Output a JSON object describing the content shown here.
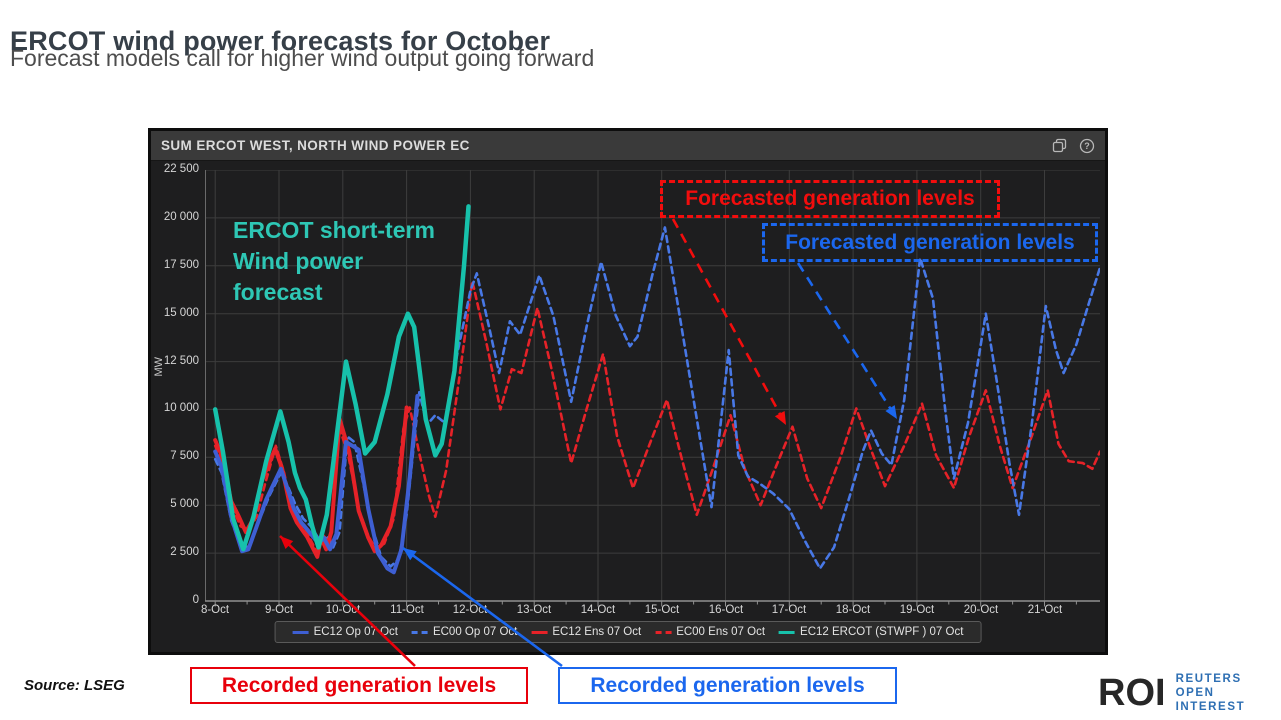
{
  "page": {
    "title": "ERCOT wind power forecasts for October",
    "subtitle": "Forecast models call for higher wind output going forward",
    "source": "Source: LSEG"
  },
  "logo": {
    "mark": "ROI",
    "line1": "REUTERS OPEN",
    "line2": "INTEREST"
  },
  "panel": {
    "title": "SUM ERCOT WEST, NORTH WIND POWER EC",
    "icons": [
      "duplicate-icon",
      "help-icon"
    ]
  },
  "annotations": {
    "teal_note": "ERCOT short-term\nWind power\nforecast",
    "forecast_red": "Forecasted generation levels",
    "forecast_blue": "Forecasted generation levels",
    "recorded_red": "Recorded generation levels",
    "recorded_blue": "Recorded generation levels",
    "leaders": [
      {
        "name": "forecast-red-leader",
        "color": "#f20d0d",
        "dashed": true,
        "from": [
          673,
          219
        ],
        "to": [
          786,
          425
        ]
      },
      {
        "name": "forecast-blue-leader",
        "color": "#1b67ee",
        "dashed": true,
        "from": [
          798,
          263
        ],
        "to": [
          897,
          419
        ]
      },
      {
        "name": "recorded-red-leader",
        "color": "#e8000b",
        "dashed": false,
        "from": [
          415,
          666
        ],
        "to": [
          280,
          536
        ]
      },
      {
        "name": "recorded-blue-leader",
        "color": "#1b67ee",
        "dashed": false,
        "from": [
          562,
          666
        ],
        "to": [
          403,
          548
        ]
      }
    ]
  },
  "colors": {
    "annotation_red": "#f20d0d",
    "annotation_blue": "#1b67ee",
    "teal_text": "#2ec7b5",
    "panel_bg": "#1e1e1f",
    "grid": "#3d3d3d",
    "axis": "#909090"
  },
  "chart_data": {
    "type": "line",
    "title": "SUM ERCOT WEST, NORTH WIND POWER EC",
    "xlabel": "",
    "ylabel": "MW",
    "ylim": [
      0,
      22500
    ],
    "ytick_step": 2500,
    "ytick_labels": [
      "0",
      "2 500",
      "5 000",
      "7 500",
      "10 000",
      "12 500",
      "15 000",
      "17 500",
      "20 000",
      "22 500"
    ],
    "xlim_days": [
      -0.16,
      13.87
    ],
    "xtick_labels": [
      "8-Oct",
      "9-Oct",
      "10-Oct",
      "11-Oct",
      "12-Oct",
      "13-Oct",
      "14-Oct",
      "15-Oct",
      "16-Oct",
      "17-Oct",
      "18-Oct",
      "19-Oct",
      "20-Oct",
      "21-Oct"
    ],
    "grid": true,
    "legend_position": "bottom",
    "x_unit": "days since 8-Oct",
    "series": [
      {
        "name": "EC12 Op 07 Oct",
        "color": "#3e5fd3",
        "dash": "solid",
        "width": 4,
        "points": [
          [
            0,
            7800
          ],
          [
            0.1,
            7000
          ],
          [
            0.25,
            4400
          ],
          [
            0.42,
            2600
          ],
          [
            0.52,
            2700
          ],
          [
            0.65,
            3900
          ],
          [
            0.8,
            5300
          ],
          [
            1.03,
            6900
          ],
          [
            1.15,
            5700
          ],
          [
            1.23,
            4840
          ],
          [
            1.35,
            4100
          ],
          [
            1.45,
            3700
          ],
          [
            1.62,
            3000
          ],
          [
            1.7,
            3300
          ],
          [
            1.8,
            2700
          ],
          [
            1.9,
            3500
          ],
          [
            2.05,
            8300
          ],
          [
            2.15,
            8100
          ],
          [
            2.25,
            7900
          ],
          [
            2.4,
            4800
          ],
          [
            2.55,
            2500
          ],
          [
            2.7,
            1700
          ],
          [
            2.8,
            1500
          ],
          [
            2.92,
            2700
          ],
          [
            3.05,
            6500
          ],
          [
            3.17,
            10700
          ]
        ]
      },
      {
        "name": "EC00 Op 07 Oct",
        "color": "#4878e6",
        "dash": "dashed",
        "width": 2.6,
        "points": [
          [
            0,
            7400
          ],
          [
            0.1,
            6700
          ],
          [
            0.25,
            4200
          ],
          [
            0.42,
            2700
          ],
          [
            0.55,
            2900
          ],
          [
            0.7,
            4300
          ],
          [
            0.85,
            5500
          ],
          [
            1.03,
            6700
          ],
          [
            1.15,
            5900
          ],
          [
            1.25,
            5100
          ],
          [
            1.38,
            4300
          ],
          [
            1.5,
            3900
          ],
          [
            1.65,
            3100
          ],
          [
            1.75,
            3400
          ],
          [
            1.85,
            2800
          ],
          [
            1.95,
            3600
          ],
          [
            2.07,
            8600
          ],
          [
            2.18,
            8300
          ],
          [
            2.3,
            6500
          ],
          [
            2.45,
            4000
          ],
          [
            2.6,
            2300
          ],
          [
            2.75,
            1800
          ],
          [
            2.88,
            2200
          ],
          [
            3.0,
            4500
          ],
          [
            3.2,
            10900
          ],
          [
            3.32,
            9200
          ],
          [
            3.45,
            9700
          ],
          [
            3.6,
            9300
          ],
          [
            3.8,
            13000
          ],
          [
            4.0,
            16200
          ],
          [
            4.1,
            17100
          ],
          [
            4.3,
            14200
          ],
          [
            4.45,
            11900
          ],
          [
            4.62,
            14600
          ],
          [
            4.78,
            13900
          ],
          [
            5.08,
            17000
          ],
          [
            5.3,
            14900
          ],
          [
            5.58,
            10400
          ],
          [
            5.82,
            14300
          ],
          [
            6.05,
            17700
          ],
          [
            6.28,
            14900
          ],
          [
            6.5,
            13300
          ],
          [
            6.62,
            13800
          ],
          [
            6.85,
            17000
          ],
          [
            7.05,
            19500
          ],
          [
            7.3,
            14500
          ],
          [
            7.55,
            9500
          ],
          [
            7.78,
            4900
          ],
          [
            8.05,
            13100
          ],
          [
            8.2,
            7600
          ],
          [
            8.35,
            6500
          ],
          [
            8.55,
            6100
          ],
          [
            8.75,
            5600
          ],
          [
            9.0,
            4800
          ],
          [
            9.25,
            3100
          ],
          [
            9.48,
            1700
          ],
          [
            9.7,
            2800
          ],
          [
            9.95,
            5500
          ],
          [
            10.15,
            7800
          ],
          [
            10.28,
            8900
          ],
          [
            10.45,
            7700
          ],
          [
            10.6,
            7100
          ],
          [
            10.8,
            10500
          ],
          [
            11.05,
            17900
          ],
          [
            11.25,
            15800
          ],
          [
            11.45,
            9800
          ],
          [
            11.58,
            6400
          ],
          [
            11.8,
            9300
          ],
          [
            12.08,
            15000
          ],
          [
            12.25,
            11500
          ],
          [
            12.45,
            7200
          ],
          [
            12.6,
            4500
          ],
          [
            12.8,
            9200
          ],
          [
            13.02,
            15400
          ],
          [
            13.18,
            13100
          ],
          [
            13.3,
            11900
          ],
          [
            13.5,
            13400
          ],
          [
            13.7,
            15600
          ],
          [
            13.87,
            17400
          ]
        ]
      },
      {
        "name": "EC12 Ens 07 Oct",
        "color": "#e62228",
        "dash": "solid",
        "width": 4,
        "points": [
          [
            0,
            8400
          ],
          [
            0.1,
            7600
          ],
          [
            0.25,
            5200
          ],
          [
            0.36,
            4480
          ],
          [
            0.48,
            3600
          ],
          [
            0.6,
            4300
          ],
          [
            0.73,
            6280
          ],
          [
            0.94,
            7950
          ],
          [
            1.05,
            6900
          ],
          [
            1.18,
            4840
          ],
          [
            1.28,
            4100
          ],
          [
            1.44,
            3350
          ],
          [
            1.6,
            2300
          ],
          [
            1.66,
            3300
          ],
          [
            1.74,
            2700
          ],
          [
            1.82,
            3600
          ],
          [
            1.95,
            9500
          ],
          [
            2.1,
            7800
          ],
          [
            2.25,
            4700
          ],
          [
            2.4,
            3300
          ],
          [
            2.5,
            2600
          ],
          [
            2.6,
            2900
          ],
          [
            2.75,
            3900
          ],
          [
            2.88,
            6000
          ],
          [
            3.0,
            10100
          ]
        ]
      },
      {
        "name": "EC00 Ens 07 Oct",
        "color": "#e62228",
        "dash": "dashed",
        "width": 2.6,
        "points": [
          [
            0,
            8100
          ],
          [
            0.1,
            7300
          ],
          [
            0.25,
            5000
          ],
          [
            0.4,
            3900
          ],
          [
            0.52,
            3700
          ],
          [
            0.65,
            4400
          ],
          [
            0.78,
            6100
          ],
          [
            0.95,
            8100
          ],
          [
            1.08,
            6700
          ],
          [
            1.2,
            4900
          ],
          [
            1.32,
            4200
          ],
          [
            1.45,
            3500
          ],
          [
            1.6,
            2500
          ],
          [
            1.7,
            3400
          ],
          [
            1.8,
            3000
          ],
          [
            1.95,
            9000
          ],
          [
            2.08,
            7700
          ],
          [
            2.25,
            4800
          ],
          [
            2.4,
            3400
          ],
          [
            2.52,
            2700
          ],
          [
            2.65,
            3000
          ],
          [
            2.8,
            4300
          ],
          [
            2.95,
            9000
          ],
          [
            3.05,
            10100
          ],
          [
            3.2,
            7700
          ],
          [
            3.35,
            5500
          ],
          [
            3.45,
            4400
          ],
          [
            3.62,
            6800
          ],
          [
            3.82,
            11500
          ],
          [
            4.03,
            16700
          ],
          [
            4.25,
            13500
          ],
          [
            4.47,
            10000
          ],
          [
            4.65,
            12100
          ],
          [
            4.8,
            11900
          ],
          [
            5.05,
            15300
          ],
          [
            5.28,
            12000
          ],
          [
            5.58,
            7200
          ],
          [
            5.82,
            10000
          ],
          [
            6.08,
            12900
          ],
          [
            6.3,
            8600
          ],
          [
            6.55,
            5900
          ],
          [
            6.8,
            8100
          ],
          [
            7.08,
            10500
          ],
          [
            7.3,
            7600
          ],
          [
            7.55,
            4500
          ],
          [
            7.8,
            6900
          ],
          [
            8.08,
            9700
          ],
          [
            8.3,
            6900
          ],
          [
            8.55,
            5000
          ],
          [
            8.8,
            7100
          ],
          [
            9.05,
            9100
          ],
          [
            9.28,
            6400
          ],
          [
            9.5,
            4850
          ],
          [
            9.8,
            7500
          ],
          [
            10.05,
            10050
          ],
          [
            10.28,
            7900
          ],
          [
            10.5,
            6000
          ],
          [
            10.8,
            8100
          ],
          [
            11.08,
            10300
          ],
          [
            11.3,
            7600
          ],
          [
            11.58,
            5900
          ],
          [
            11.82,
            8600
          ],
          [
            12.08,
            11000
          ],
          [
            12.3,
            8100
          ],
          [
            12.5,
            5900
          ],
          [
            12.8,
            8600
          ],
          [
            13.05,
            11000
          ],
          [
            13.22,
            8200
          ],
          [
            13.38,
            7300
          ],
          [
            13.6,
            7200
          ],
          [
            13.75,
            6900
          ],
          [
            13.87,
            7800
          ]
        ]
      },
      {
        "name": "EC12 ERCOT (STWPF ) 07 Oct",
        "color": "#17c1ab",
        "dash": "solid",
        "width": 4.5,
        "points": [
          [
            0,
            10000
          ],
          [
            0.12,
            7800
          ],
          [
            0.28,
            4300
          ],
          [
            0.44,
            2700
          ],
          [
            0.6,
            4400
          ],
          [
            0.8,
            7300
          ],
          [
            1.02,
            9900
          ],
          [
            1.15,
            8300
          ],
          [
            1.25,
            6700
          ],
          [
            1.33,
            5900
          ],
          [
            1.42,
            5300
          ],
          [
            1.52,
            3900
          ],
          [
            1.62,
            2800
          ],
          [
            1.75,
            4500
          ],
          [
            1.9,
            8500
          ],
          [
            2.05,
            12500
          ],
          [
            2.2,
            10300
          ],
          [
            2.35,
            7700
          ],
          [
            2.5,
            8300
          ],
          [
            2.7,
            10800
          ],
          [
            2.88,
            13800
          ],
          [
            3.02,
            15000
          ],
          [
            3.12,
            14300
          ],
          [
            3.3,
            9500
          ],
          [
            3.45,
            7600
          ],
          [
            3.55,
            8200
          ],
          [
            3.75,
            12000
          ],
          [
            3.9,
            17500
          ],
          [
            3.97,
            20600
          ]
        ]
      }
    ]
  }
}
